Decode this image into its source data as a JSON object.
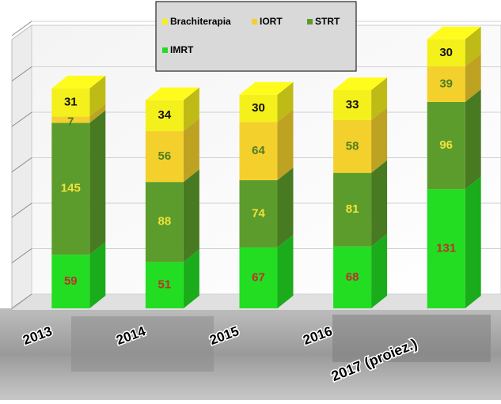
{
  "chart_data": {
    "type": "stacked-bar-3d",
    "categories": [
      "2013",
      "2014",
      "2015",
      "2016",
      "2017 (proiez.)"
    ],
    "series": [
      {
        "name": "IMRT",
        "color": "#22dd22",
        "label_color": "#c0302a",
        "values": [
          59,
          51,
          67,
          68,
          131
        ]
      },
      {
        "name": "STRT",
        "color": "#5c9c2c",
        "label_color": "#f2e23a",
        "values": [
          145,
          88,
          74,
          81,
          96
        ]
      },
      {
        "name": "IORT",
        "color": "#f4d02c",
        "label_color": "#4e7e22",
        "values": [
          7,
          56,
          64,
          58,
          39
        ]
      },
      {
        "name": "Brachiterapia",
        "color": "#f4f01c",
        "label_color": "#111111",
        "values": [
          31,
          34,
          30,
          33,
          30
        ]
      }
    ],
    "ylim": [
      0,
      300
    ],
    "yticks": [
      0,
      50,
      100,
      150,
      200,
      250,
      300
    ],
    "grid": true
  }
}
